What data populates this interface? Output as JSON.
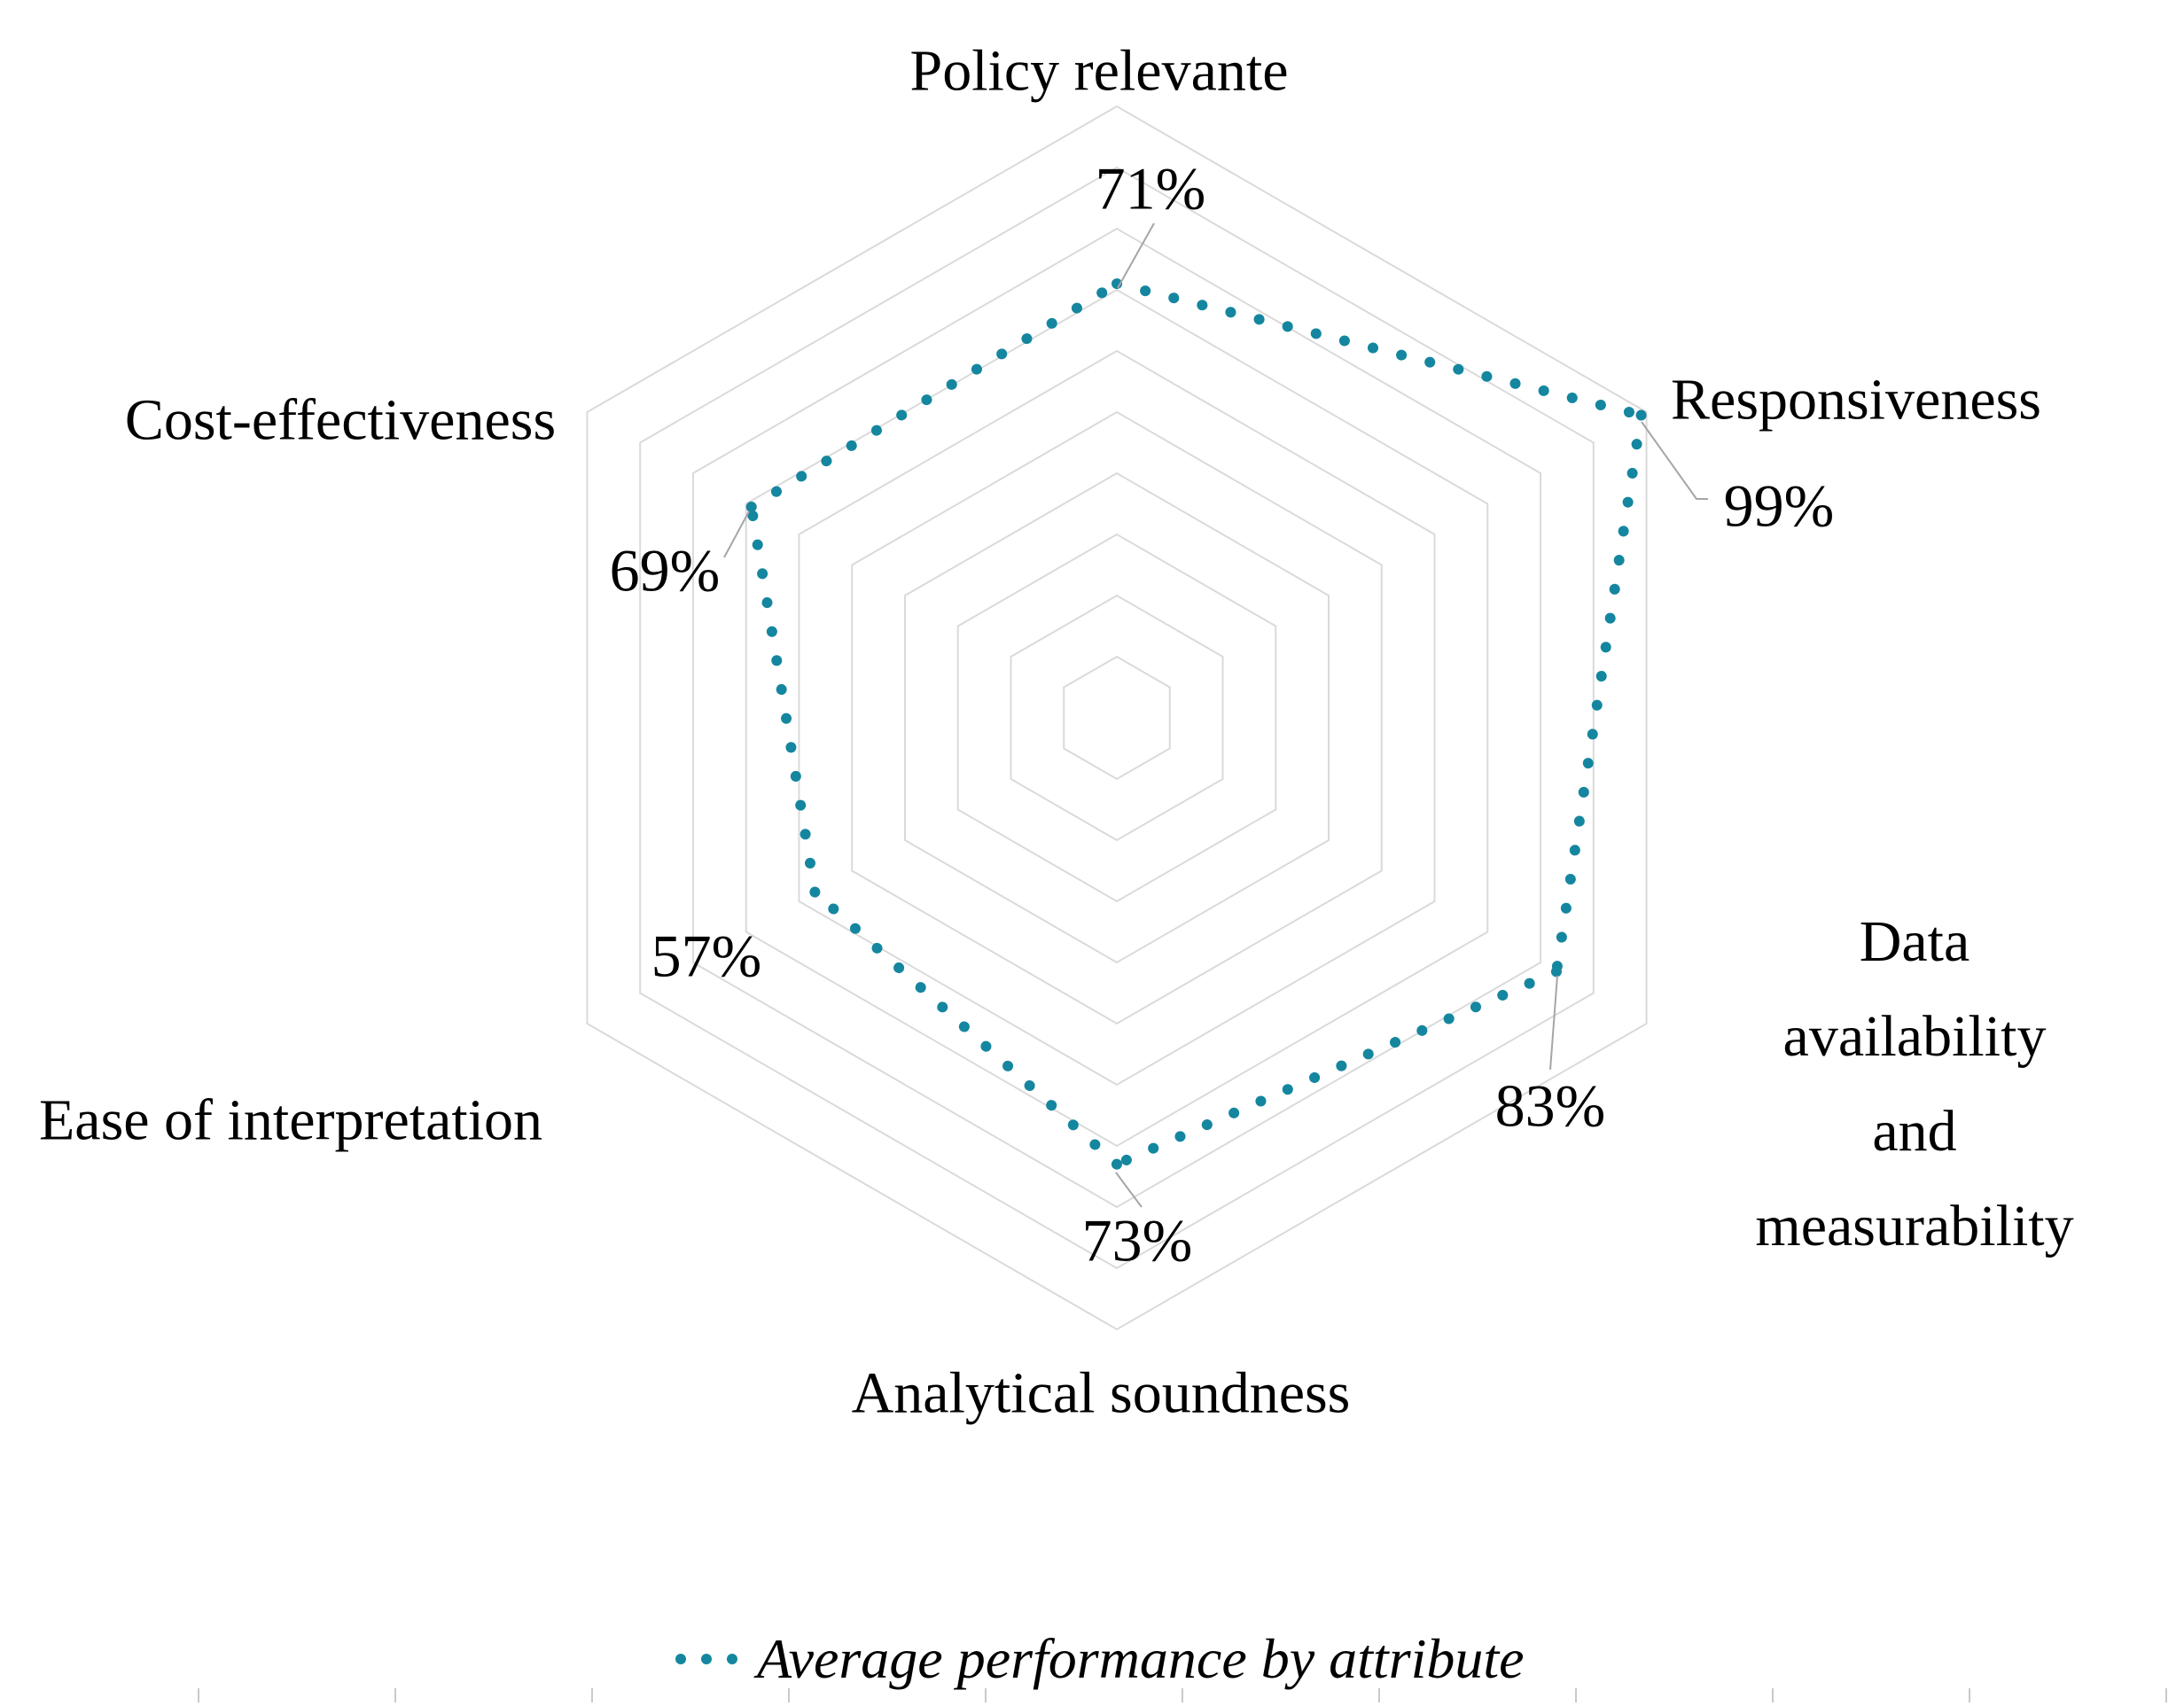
{
  "chart_data": {
    "type": "radar",
    "title": "",
    "categories": [
      "Policy relevante",
      "Responsiveness",
      "Data availability and\nmeasurability",
      "Analytical soundness",
      "Ease of interpretation",
      "Cost-effectiveness"
    ],
    "series": [
      {
        "name": "Average performance by attribute",
        "values": [
          71,
          99,
          83,
          73,
          57,
          69
        ],
        "color": "#15869f",
        "line_style": "dotted"
      }
    ],
    "value_labels": [
      "71%",
      "99%",
      "83%",
      "73%",
      "57%",
      "69%"
    ],
    "axis": {
      "min": 0,
      "max": 100,
      "grid_interval_pct": 10,
      "grid_rings": 10,
      "grid_shape": "hexagon",
      "tick_labels_visible": false,
      "radial_spokes_visible": false
    },
    "legend_position": "bottom",
    "colors": {
      "series": "#15869f",
      "grid": "#dadada",
      "leader_line": "#a6a6a6",
      "bottom_ticks": "#c9c9c9",
      "text": "#000000"
    }
  },
  "legend": {
    "marker": "three-dots",
    "label": "Average performance by attribute"
  }
}
